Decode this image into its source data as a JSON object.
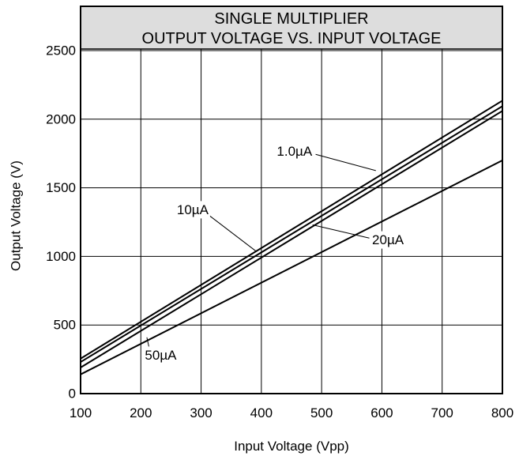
{
  "chart_data": {
    "type": "line",
    "title_lines": [
      "SINGLE MULTIPLIER",
      "OUTPUT VOLTAGE VS. INPUT VOLTAGE"
    ],
    "xlabel": "Input Voltage (Vpp)",
    "ylabel": "Output Voltage (V)",
    "xlim": [
      100,
      800
    ],
    "ylim": [
      0,
      2500
    ],
    "x_ticks": [
      "100",
      "200",
      "300",
      "400",
      "500",
      "600",
      "700",
      "800"
    ],
    "y_ticks": [
      "0",
      "500",
      "1000",
      "1500",
      "2000",
      "2500"
    ],
    "grid": true,
    "series": [
      {
        "name": "1.0µA",
        "x": [
          100,
          800
        ],
        "y": [
          255,
          2135
        ]
      },
      {
        "name": "10µA",
        "x": [
          100,
          800
        ],
        "y": [
          230,
          2095
        ]
      },
      {
        "name": "20µA",
        "x": [
          100,
          800
        ],
        "y": [
          190,
          2060
        ]
      },
      {
        "name": "50µA",
        "x": [
          100,
          800
        ],
        "y": [
          140,
          1700
        ]
      }
    ],
    "annotations": [
      {
        "text": "1.0µA",
        "series": "1.0µA",
        "label_at": [
          455,
          1765
        ],
        "points_to": [
          590,
          1625
        ]
      },
      {
        "text": "10µA",
        "series": "10µA",
        "label_at": [
          286,
          1340
        ],
        "points_to": [
          392,
          1035
        ]
      },
      {
        "text": "20µA",
        "series": "20µA",
        "label_at": [
          610,
          1120
        ],
        "points_to": [
          485,
          1230
        ]
      },
      {
        "text": "50µA",
        "series": "50µA",
        "label_at": [
          233,
          280
        ],
        "points_to": [
          210,
          410
        ]
      }
    ],
    "colors": {
      "line": "#000000",
      "grid": "#000000",
      "title_bg": "#dddddd"
    }
  }
}
